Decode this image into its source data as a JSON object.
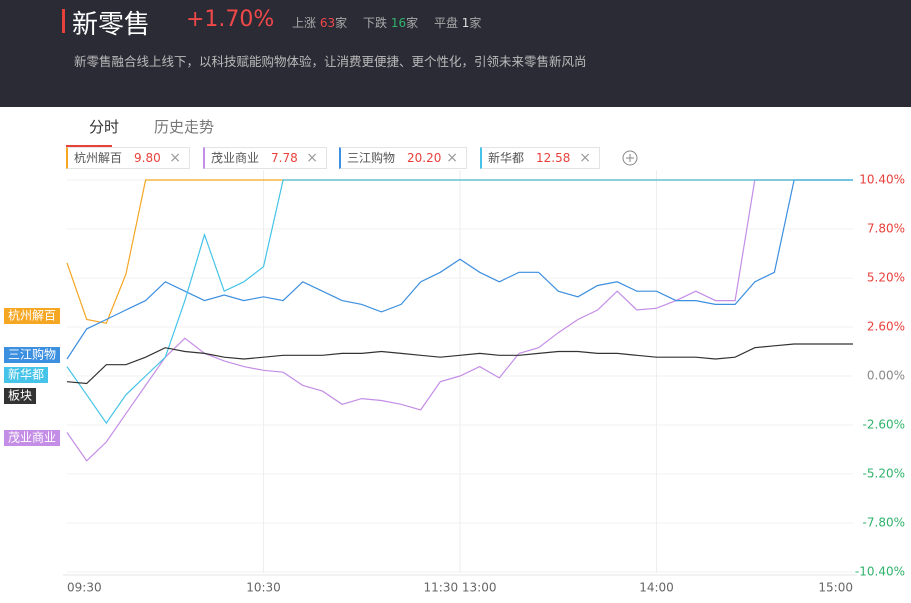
{
  "header": {
    "title": "新零售",
    "change": "+1.70%",
    "stats": [
      {
        "label": "上涨",
        "count": "63",
        "unit": "家"
      },
      {
        "label": "下跌",
        "count": "16",
        "unit": "家"
      },
      {
        "label": "平盘",
        "count": "1",
        "unit": "家"
      }
    ],
    "description": "新零售融合线上线下，以科技赋能购物体验，让消费更便捷、更个性化，引领未来零售新风尚"
  },
  "tabs": [
    "分时",
    "历史走势"
  ],
  "compare": [
    {
      "price": "9.80"
    },
    {
      "price": "7.78"
    },
    {
      "price": "20.20"
    },
    {
      "price": "12.58"
    }
  ],
  "chart_data": {
    "type": "line",
    "x": [
      0,
      6,
      12,
      18,
      24,
      30,
      36,
      42,
      48,
      54,
      60,
      66,
      72,
      78,
      84,
      90,
      96,
      102,
      108,
      114,
      120,
      126,
      132,
      138,
      144,
      150,
      156,
      162,
      168,
      174,
      180,
      186,
      192,
      198,
      204,
      210,
      216,
      222,
      228,
      234,
      240
    ],
    "xlim": [
      0,
      240
    ],
    "xticks": [
      {
        "value": 0,
        "label": "09:30"
      },
      {
        "value": 60,
        "label": "10:30"
      },
      {
        "value": 120,
        "label": "11:30 13:00"
      },
      {
        "value": 180,
        "label": "14:00"
      },
      {
        "value": 240,
        "label": "15:00"
      }
    ],
    "ylim": [
      -10.4,
      10.4
    ],
    "yticks": [
      {
        "value": 10.4,
        "label": "10.40%"
      },
      {
        "value": 7.8,
        "label": "7.80%"
      },
      {
        "value": 5.2,
        "label": "5.20%"
      },
      {
        "value": 2.6,
        "label": "2.60%"
      },
      {
        "value": 0,
        "label": "0.00%"
      },
      {
        "value": -2.6,
        "label": "-2.60%"
      },
      {
        "value": -5.2,
        "label": "-5.20%"
      },
      {
        "value": -7.8,
        "label": "-7.80%"
      },
      {
        "value": -10.4,
        "label": "-10.40%"
      }
    ],
    "grid": true,
    "series": [
      {
        "name": "杭州解百",
        "color": "#f5a623",
        "values": [
          6.0,
          3.0,
          2.8,
          5.4,
          10.4,
          10.4,
          10.4,
          10.4,
          10.4,
          10.4,
          10.4,
          10.4,
          10.4,
          10.4,
          10.4,
          10.4,
          10.4,
          10.4,
          10.4,
          10.4,
          10.4,
          10.4,
          10.4,
          10.4,
          10.4,
          10.4,
          10.4,
          10.4,
          10.4,
          10.4,
          10.4,
          10.4,
          10.4,
          10.4,
          10.4,
          10.4,
          10.4,
          10.4,
          10.4,
          10.4,
          10.4
        ]
      },
      {
        "name": "茂业商业",
        "color": "#c48ee6",
        "values": [
          -3.0,
          -4.5,
          -3.5,
          -2.0,
          -0.5,
          1.0,
          2.0,
          1.2,
          0.8,
          0.5,
          0.3,
          0.2,
          -0.5,
          -0.8,
          -1.5,
          -1.2,
          -1.3,
          -1.5,
          -1.8,
          -0.3,
          0.0,
          0.5,
          -0.1,
          1.2,
          1.5,
          2.3,
          3.0,
          3.5,
          4.5,
          3.5,
          3.6,
          4.0,
          4.5,
          4.0,
          4.0,
          10.4,
          10.4,
          10.4,
          10.4,
          10.4,
          10.4
        ]
      },
      {
        "name": "三江购物",
        "color": "#3d8fe0",
        "values": [
          0.9,
          2.5,
          3.0,
          3.5,
          4.0,
          5.0,
          4.5,
          4.0,
          4.3,
          4.0,
          4.2,
          4.0,
          5.0,
          4.5,
          4.0,
          3.8,
          3.4,
          3.8,
          5.0,
          5.5,
          6.2,
          5.5,
          5.0,
          5.5,
          5.5,
          4.5,
          4.2,
          4.8,
          5.0,
          4.5,
          4.5,
          4.0,
          4.0,
          3.8,
          3.8,
          5.0,
          5.5,
          10.4,
          10.4,
          10.4,
          10.4
        ]
      },
      {
        "name": "新华都",
        "color": "#45c3e8",
        "values": [
          0.5,
          -1.0,
          -2.5,
          -1.0,
          0.0,
          1.0,
          4.0,
          7.5,
          4.5,
          5.0,
          5.8,
          10.4,
          10.4,
          10.4,
          10.4,
          10.4,
          10.4,
          10.4,
          10.4,
          10.4,
          10.4,
          10.4,
          10.4,
          10.4,
          10.4,
          10.4,
          10.4,
          10.4,
          10.4,
          10.4,
          10.4,
          10.4,
          10.4,
          10.4,
          10.4,
          10.4,
          10.4,
          10.4,
          10.4,
          10.4,
          10.4
        ]
      },
      {
        "name": "板块",
        "color": "#333333",
        "values": [
          -0.3,
          -0.4,
          0.6,
          0.6,
          1.0,
          1.5,
          1.3,
          1.2,
          1.0,
          0.9,
          1.0,
          1.1,
          1.1,
          1.1,
          1.2,
          1.2,
          1.3,
          1.2,
          1.1,
          1.0,
          1.1,
          1.2,
          1.1,
          1.1,
          1.2,
          1.3,
          1.3,
          1.2,
          1.2,
          1.1,
          1.0,
          1.0,
          1.0,
          0.9,
          1.0,
          1.5,
          1.6,
          1.7,
          1.7,
          1.7,
          1.7
        ]
      }
    ]
  }
}
